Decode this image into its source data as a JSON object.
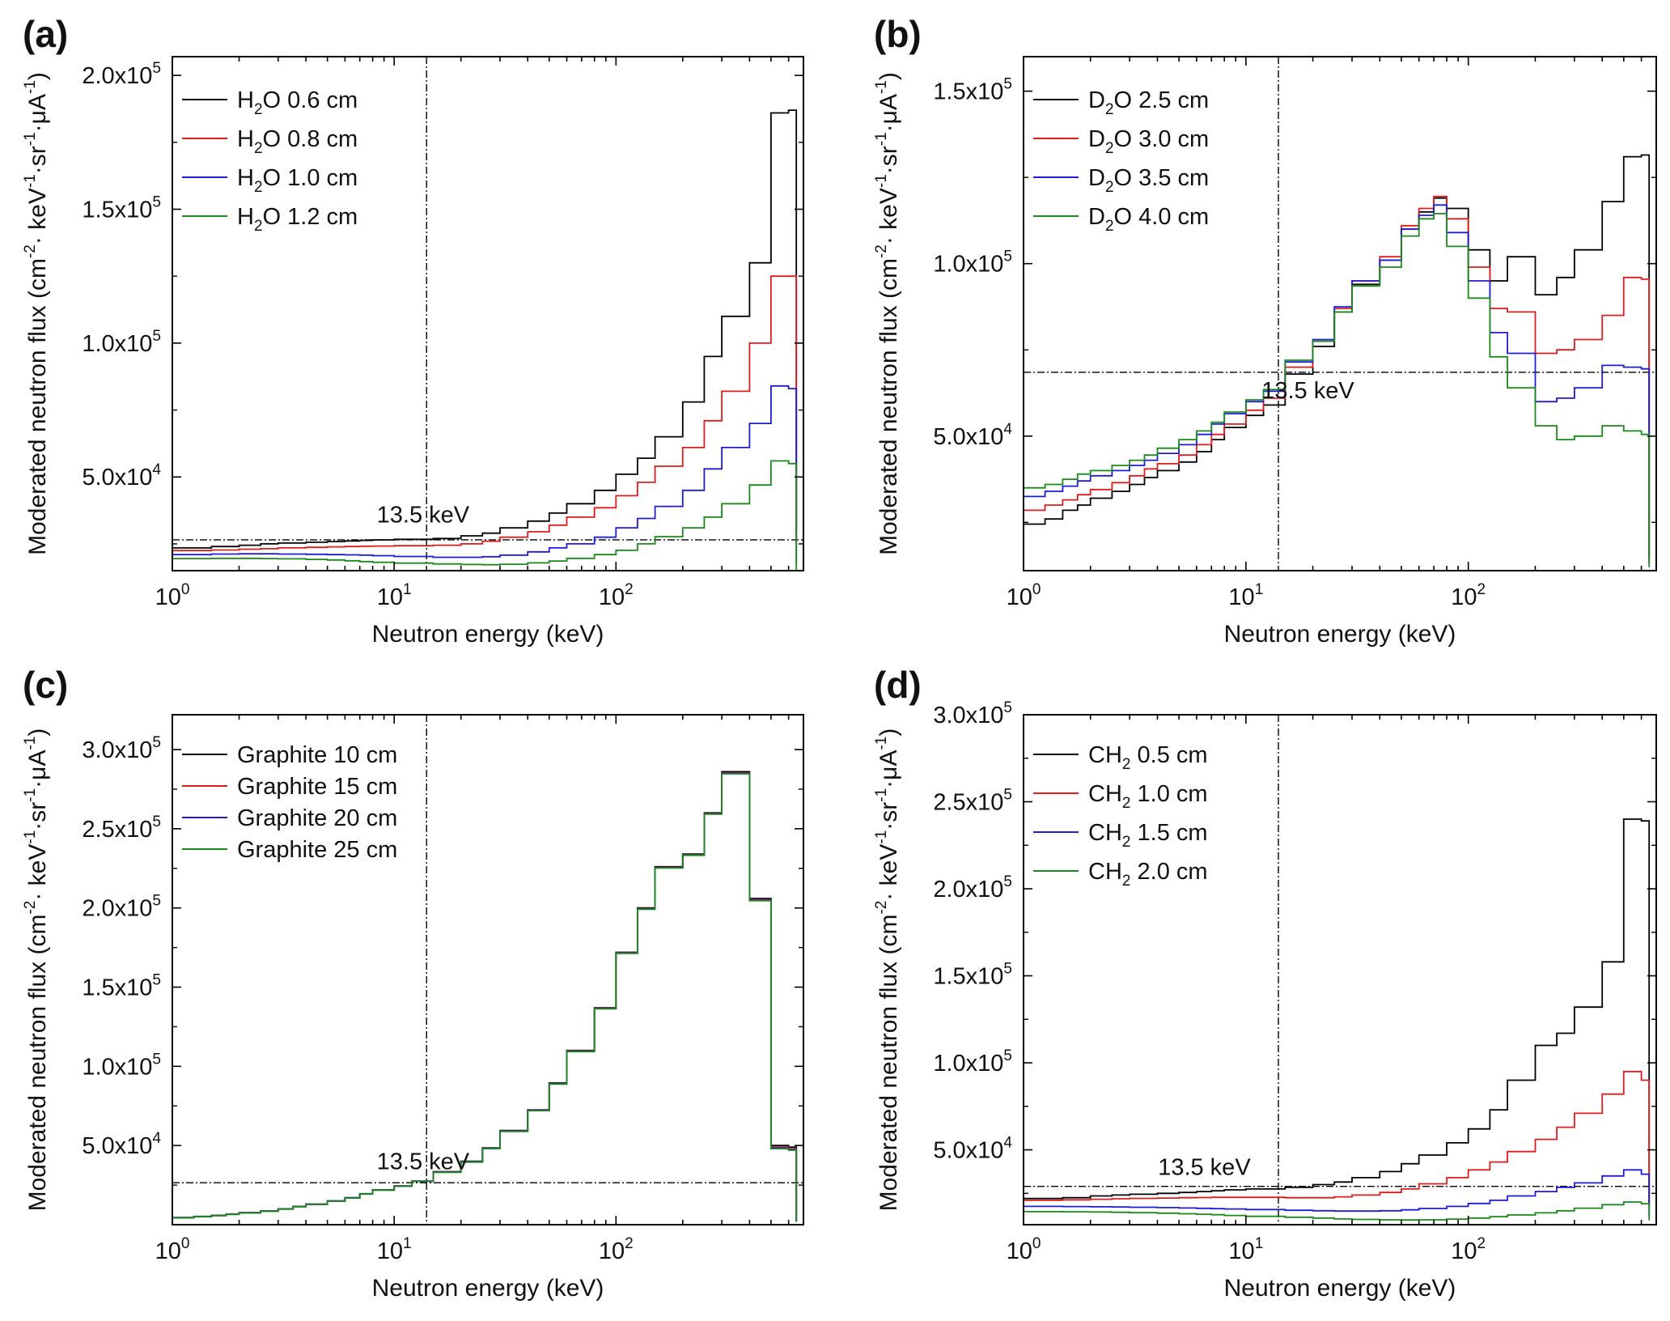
{
  "figure": {
    "panel_labels": [
      "(a)",
      "(b)",
      "(c)",
      "(d)"
    ],
    "xlabel": "Neutron energy (keV)",
    "ylabel": "Moderated neutron flux (cm⁻²· keV⁻¹·sr⁻¹·μA⁻¹)",
    "ylabel_parts": {
      "base": "Moderated neutron flux (cm",
      "e1": "-2",
      "mid1": "· keV",
      "e2": "-1",
      "mid2": "·sr",
      "e3": "-1",
      "mid3": "·μA",
      "e4": "-1",
      "end": ")"
    },
    "colors": {
      "black": "#000000",
      "red": "#e01c1c",
      "blue": "#1c1cd9",
      "green": "#1a8a1a"
    }
  },
  "chart_data": [
    {
      "panel": "(a)",
      "type": "line",
      "step": true,
      "xscale": "log",
      "xlim": [
        1,
        700
      ],
      "ylim": [
        15000,
        207000
      ],
      "xticks": [
        {
          "v": 1,
          "base": "10",
          "exp": "0"
        },
        {
          "v": 10,
          "base": "10",
          "exp": "1"
        },
        {
          "v": 100,
          "base": "10",
          "exp": "2"
        }
      ],
      "yticks": [
        {
          "v": 50000,
          "base": "5.0x10",
          "exp": "4"
        },
        {
          "v": 100000,
          "base": "1.0x10",
          "exp": "5"
        },
        {
          "v": 150000,
          "base": "1.5x10",
          "exp": "5"
        },
        {
          "v": 200000,
          "base": "2.0x10",
          "exp": "5"
        }
      ],
      "vline": 14,
      "hline": 26500,
      "annotation": {
        "text": "13.5 keV",
        "x": 13.5,
        "y": 33000
      },
      "edges": [
        1,
        1.5,
        2,
        2.5,
        3,
        4,
        5,
        6,
        7,
        8,
        10,
        15,
        20,
        25,
        30,
        40,
        50,
        60,
        80,
        100,
        125,
        150,
        200,
        250,
        300,
        400,
        500,
        600,
        650
      ],
      "series": [
        {
          "name": "H2O 0.6 cm",
          "prefix": "H",
          "subscript": "2",
          "suffix": "O 0.6 cm",
          "color": "#000000",
          "values": [
            23500,
            24000,
            24500,
            25000,
            25300,
            25600,
            25900,
            26100,
            26300,
            26500,
            26700,
            27000,
            28000,
            29000,
            31000,
            33500,
            36500,
            40000,
            45000,
            51000,
            57000,
            65000,
            78000,
            95000,
            110000,
            130000,
            186000,
            187000
          ],
          "end": 30000
        },
        {
          "name": "H2O 0.8 cm",
          "prefix": "H",
          "subscript": "2",
          "suffix": "O 0.8 cm",
          "color": "#e01c1c",
          "values": [
            22500,
            22700,
            23000,
            23200,
            23500,
            23700,
            23900,
            24000,
            24100,
            24200,
            24300,
            24500,
            25000,
            26000,
            27500,
            29500,
            32000,
            35000,
            38500,
            43000,
            48000,
            54000,
            61000,
            71000,
            82000,
            100000,
            125000,
            125000
          ],
          "end": 25000
        },
        {
          "name": "H2O 1.0 cm",
          "prefix": "H",
          "subscript": "2",
          "suffix": "O 1.0 cm",
          "color": "#1c1cd9",
          "values": [
            21000,
            21200,
            21300,
            21300,
            21200,
            21100,
            21000,
            20900,
            20800,
            20600,
            20300,
            20000,
            20000,
            20200,
            20800,
            22000,
            23500,
            25000,
            27500,
            31000,
            34500,
            39000,
            45000,
            53000,
            61000,
            70000,
            84000,
            83000
          ],
          "end": 18000
        },
        {
          "name": "H2O 1.2 cm",
          "prefix": "H",
          "subscript": "2",
          "suffix": "O 1.2 cm",
          "color": "#1a8a1a",
          "values": [
            19500,
            19600,
            19600,
            19500,
            19400,
            19200,
            19000,
            18700,
            18400,
            18100,
            17800,
            17500,
            17300,
            17200,
            17400,
            17900,
            18600,
            19600,
            21000,
            22600,
            25000,
            27700,
            31000,
            35000,
            40000,
            47000,
            56000,
            55000
          ],
          "end": 11000
        }
      ]
    },
    {
      "panel": "(b)",
      "type": "line",
      "step": true,
      "xscale": "log",
      "xlim": [
        1,
        700
      ],
      "ylim": [
        11000,
        160000
      ],
      "xticks": [
        {
          "v": 1,
          "base": "10",
          "exp": "0"
        },
        {
          "v": 10,
          "base": "10",
          "exp": "1"
        },
        {
          "v": 100,
          "base": "10",
          "exp": "2"
        }
      ],
      "yticks": [
        {
          "v": 50000,
          "base": "5.0x10",
          "exp": "4"
        },
        {
          "v": 100000,
          "base": "1.0x10",
          "exp": "5"
        },
        {
          "v": 150000,
          "base": "1.5x10",
          "exp": "5"
        }
      ],
      "vline": 14,
      "hline": 68500,
      "annotation": {
        "text": "13.5 keV",
        "x": 19,
        "y": 61000
      },
      "edges": [
        1,
        1.25,
        1.5,
        1.75,
        2,
        2.5,
        3,
        3.5,
        4,
        5,
        6,
        7,
        8,
        10,
        12,
        15,
        20,
        25,
        30,
        40,
        50,
        60,
        70,
        80,
        100,
        125,
        150,
        200,
        250,
        300,
        400,
        500,
        600,
        650
      ],
      "series": [
        {
          "name": "D2O 2.5 cm",
          "prefix": "D",
          "subscript": "2",
          "suffix": "O 2.5 cm",
          "color": "#000000",
          "values": [
            24500,
            26000,
            28500,
            30000,
            32000,
            34000,
            36000,
            38000,
            40000,
            42500,
            45500,
            49000,
            52500,
            56000,
            59000,
            68000,
            76000,
            86000,
            94000,
            101000,
            110000,
            115000,
            119000,
            116000,
            104000,
            95000,
            102000,
            91000,
            96000,
            104000,
            118000,
            131000,
            131500
          ],
          "end": 15000
        },
        {
          "name": "D2O 3.0 cm",
          "prefix": "D",
          "subscript": "2",
          "suffix": "O 3.0 cm",
          "color": "#e01c1c",
          "values": [
            28500,
            30000,
            31500,
            33000,
            34500,
            36500,
            38500,
            40500,
            42000,
            44500,
            47500,
            50500,
            53500,
            57500,
            61000,
            70000,
            77500,
            87000,
            95000,
            102000,
            111000,
            116000,
            119500,
            113000,
            99000,
            87000,
            86000,
            74000,
            75000,
            78000,
            85000,
            96000,
            95500
          ],
          "end": 14000
        },
        {
          "name": "D2O 3.5 cm",
          "prefix": "D",
          "subscript": "2",
          "suffix": "O 3.5 cm",
          "color": "#1c1cd9",
          "values": [
            32500,
            34000,
            35500,
            37000,
            38500,
            40000,
            41500,
            43000,
            45000,
            47500,
            50500,
            53500,
            56500,
            60000,
            63000,
            71500,
            78000,
            87500,
            95000,
            101000,
            110000,
            114000,
            117000,
            109000,
            95000,
            80000,
            74000,
            60000,
            61000,
            64000,
            70500,
            70000,
            69500
          ],
          "end": 13000
        },
        {
          "name": "D2O 4.0 cm",
          "prefix": "D",
          "subscript": "2",
          "suffix": "O 4.0 cm",
          "color": "#1a8a1a",
          "values": [
            35000,
            36000,
            37500,
            39000,
            40000,
            41500,
            43000,
            44500,
            46500,
            49000,
            51500,
            54000,
            57000,
            60500,
            63500,
            72000,
            77500,
            86000,
            93500,
            99000,
            108000,
            113000,
            114500,
            105000,
            90000,
            73000,
            64000,
            53000,
            49000,
            50000,
            53000,
            51500,
            50500
          ],
          "end": 12000
        }
      ]
    },
    {
      "panel": "(c)",
      "type": "line",
      "step": true,
      "xscale": "log",
      "xlim": [
        1,
        700
      ],
      "ylim": [
        0,
        322000
      ],
      "xticks": [
        {
          "v": 1,
          "base": "10",
          "exp": "0"
        },
        {
          "v": 10,
          "base": "10",
          "exp": "1"
        },
        {
          "v": 100,
          "base": "10",
          "exp": "2"
        }
      ],
      "yticks": [
        {
          "v": 50000,
          "base": "5.0x10",
          "exp": "4"
        },
        {
          "v": 100000,
          "base": "1.0x10",
          "exp": "5"
        },
        {
          "v": 150000,
          "base": "1.5x10",
          "exp": "5"
        },
        {
          "v": 200000,
          "base": "2.0x10",
          "exp": "5"
        },
        {
          "v": 250000,
          "base": "2.5x10",
          "exp": "5"
        },
        {
          "v": 300000,
          "base": "3.0x10",
          "exp": "5"
        }
      ],
      "vline": 14,
      "hline": 26500,
      "annotation": {
        "text": "13.5 keV",
        "x": 13.5,
        "y": 35000
      },
      "edges": [
        1,
        1.25,
        1.5,
        1.75,
        2,
        2.5,
        3,
        3.5,
        4,
        5,
        6,
        7,
        8,
        10,
        12,
        15,
        20,
        25,
        30,
        40,
        50,
        60,
        80,
        100,
        125,
        150,
        200,
        250,
        300,
        400,
        500,
        600,
        650
      ],
      "series": [
        {
          "name": "Graphite 10 cm",
          "prefix": "Graphite 10 cm",
          "subscript": "",
          "suffix": "",
          "color": "#000000",
          "values": [
            4500,
            5200,
            5900,
            6700,
            7600,
            8700,
            10000,
            11500,
            13000,
            15000,
            17000,
            19500,
            22000,
            24500,
            27500,
            33500,
            40000,
            48500,
            59500,
            72500,
            89500,
            110000,
            137000,
            172000,
            200000,
            226000,
            234000,
            260000,
            286000,
            206000,
            50000,
            49000
          ],
          "end": 2000
        },
        {
          "name": "Graphite 15 cm",
          "prefix": "Graphite 15 cm",
          "subscript": "",
          "suffix": "",
          "color": "#e01c1c",
          "values": [
            4400,
            5100,
            5800,
            6600,
            7500,
            8600,
            9900,
            11400,
            12900,
            14900,
            16900,
            19400,
            21900,
            24400,
            27400,
            33300,
            39800,
            48300,
            59200,
            72300,
            89200,
            109700,
            136700,
            171700,
            199600,
            225600,
            233600,
            259600,
            285300,
            205300,
            49000,
            48000
          ],
          "end": 2000
        },
        {
          "name": "Graphite 20 cm",
          "prefix": "Graphite 20 cm",
          "subscript": "",
          "suffix": "",
          "color": "#1c1cd9",
          "values": [
            4400,
            5100,
            5800,
            6600,
            7500,
            8600,
            9900,
            11400,
            12900,
            14900,
            16900,
            19400,
            21900,
            24400,
            27400,
            33200,
            39700,
            48200,
            59100,
            72200,
            89000,
            109500,
            136500,
            171500,
            199400,
            225400,
            233400,
            259400,
            285000,
            205000,
            48500,
            47500
          ],
          "end": 2000
        },
        {
          "name": "Graphite 25 cm",
          "prefix": "Graphite 25 cm",
          "subscript": "",
          "suffix": "",
          "color": "#1a8a1a",
          "values": [
            4300,
            5000,
            5700,
            6500,
            7400,
            8500,
            9800,
            11300,
            12800,
            14800,
            16800,
            19300,
            21800,
            24300,
            27300,
            33000,
            39500,
            48000,
            58900,
            72000,
            88800,
            109300,
            136300,
            171300,
            199200,
            225200,
            233200,
            259200,
            284700,
            204600,
            48000,
            47000
          ],
          "end": 1800
        }
      ]
    },
    {
      "panel": "(d)",
      "type": "line",
      "step": true,
      "xscale": "log",
      "xlim": [
        1,
        700
      ],
      "ylim": [
        7000,
        300000
      ],
      "xticks": [
        {
          "v": 1,
          "base": "10",
          "exp": "0"
        },
        {
          "v": 10,
          "base": "10",
          "exp": "1"
        },
        {
          "v": 100,
          "base": "10",
          "exp": "2"
        }
      ],
      "yticks": [
        {
          "v": 50000,
          "base": "5.0x10",
          "exp": "4"
        },
        {
          "v": 100000,
          "base": "1.0x10",
          "exp": "5"
        },
        {
          "v": 150000,
          "base": "1.5x10",
          "exp": "5"
        },
        {
          "v": 200000,
          "base": "2.0x10",
          "exp": "5"
        },
        {
          "v": 250000,
          "base": "2.5x10",
          "exp": "5"
        },
        {
          "v": 300000,
          "base": "3.0x10",
          "exp": "5"
        }
      ],
      "vline": 14,
      "hline": 29000,
      "annotation": {
        "text": "13.5 keV",
        "x": 6.5,
        "y": 35500
      },
      "edges": [
        1,
        1.5,
        2,
        2.5,
        3,
        4,
        5,
        6,
        7,
        8,
        10,
        15,
        20,
        25,
        30,
        40,
        50,
        60,
        80,
        100,
        125,
        150,
        200,
        250,
        300,
        400,
        500,
        600,
        650
      ],
      "series": [
        {
          "name": "CH2 0.5 cm",
          "prefix": "CH",
          "subscript": "2",
          "suffix": " 0.5 cm",
          "color": "#000000",
          "values": [
            22000,
            22500,
            23500,
            24000,
            24500,
            25000,
            25500,
            26000,
            26500,
            27000,
            27500,
            28500,
            30000,
            31500,
            34000,
            37500,
            42000,
            47000,
            54000,
            62000,
            73000,
            90000,
            110000,
            117000,
            132000,
            158000,
            240000,
            239000
          ],
          "end": 18000
        },
        {
          "name": "CH2 1.0 cm",
          "prefix": "CH",
          "subscript": "2",
          "suffix": " 1.0 cm",
          "color": "#e01c1c",
          "values": [
            21000,
            21300,
            21600,
            21900,
            22100,
            22300,
            22500,
            22600,
            22700,
            22700,
            22700,
            22500,
            22500,
            23000,
            24000,
            25500,
            27500,
            30500,
            34000,
            38500,
            43000,
            49000,
            56000,
            63000,
            71000,
            82000,
            95000,
            90000
          ],
          "end": 20000
        },
        {
          "name": "CH2 1.5 cm",
          "prefix": "CH",
          "subscript": "2",
          "suffix": " 1.5 cm",
          "color": "#1c1cd9",
          "values": [
            17500,
            17400,
            17300,
            17200,
            17000,
            16800,
            16600,
            16400,
            16200,
            16000,
            15700,
            15300,
            15000,
            14800,
            14800,
            15000,
            15500,
            16300,
            17500,
            19200,
            21000,
            23500,
            26000,
            28500,
            31000,
            35000,
            38500,
            36000
          ],
          "end": 12000
        },
        {
          "name": "CH2 2.0 cm",
          "prefix": "CH",
          "subscript": "2",
          "suffix": " 2.0 cm",
          "color": "#1a8a1a",
          "values": [
            14500,
            14400,
            14300,
            14100,
            13900,
            13600,
            13300,
            13000,
            12700,
            12300,
            11800,
            11300,
            10800,
            10300,
            10000,
            9800,
            9700,
            9800,
            10200,
            10800,
            11600,
            12600,
            13800,
            15000,
            16500,
            18500,
            20000,
            19000
          ],
          "end": 9500
        }
      ]
    }
  ]
}
